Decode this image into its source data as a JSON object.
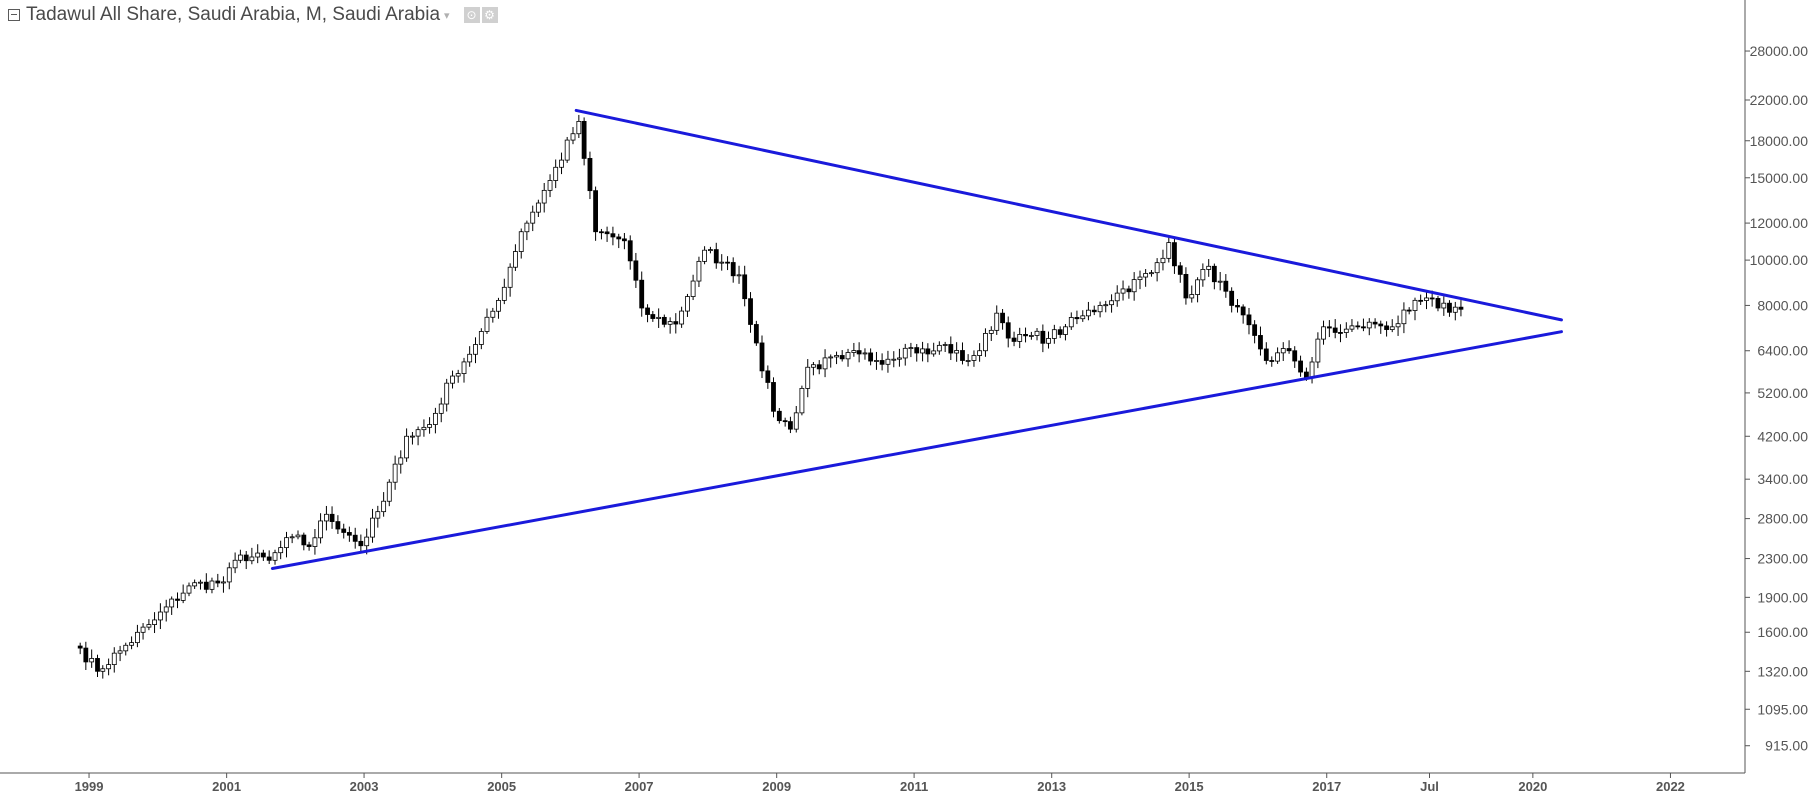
{
  "legend": {
    "title": "Tadawul All Share, Saudi Arabia, M, Saudi Arabia",
    "caret": "▾",
    "tool_1": "⊙",
    "tool_2": "⚙"
  },
  "colors": {
    "trendline": "#1a1adb",
    "candle_up_fill": "#ffffff",
    "candle_down_fill": "#000000",
    "candle_outline": "#000000",
    "axis": "#555555",
    "tick_text": "#555555"
  },
  "chart_data": {
    "type": "candlestick",
    "timeframe": "M",
    "y_scale": "log",
    "grid": false,
    "ylim": [
      800,
      36000
    ],
    "xlim": [
      "1997-09-15",
      "2023-02-01"
    ],
    "yticks": [
      {
        "value": 28000,
        "label": "28000.00"
      },
      {
        "value": 22000,
        "label": "22000.00"
      },
      {
        "value": 18000,
        "label": "18000.00"
      },
      {
        "value": 15000,
        "label": "15000.00"
      },
      {
        "value": 12000,
        "label": "12000.00"
      },
      {
        "value": 10000,
        "label": "10000.00"
      },
      {
        "value": 8000,
        "label": "8000.00"
      },
      {
        "value": 6400,
        "label": "6400.00"
      },
      {
        "value": 5200,
        "label": "5200.00"
      },
      {
        "value": 4200,
        "label": "4200.00"
      },
      {
        "value": 3400,
        "label": "3400.00"
      },
      {
        "value": 2800,
        "label": "2800.00"
      },
      {
        "value": 2300,
        "label": "2300.00"
      },
      {
        "value": 1900,
        "label": "1900.00"
      },
      {
        "value": 1600,
        "label": "1600.00"
      },
      {
        "value": 1320,
        "label": "1320.00"
      },
      {
        "value": 1095,
        "label": "1095.00"
      },
      {
        "value": 915,
        "label": "915.00"
      }
    ],
    "xticks": [
      {
        "date": "1999-01-01",
        "label": "1999"
      },
      {
        "date": "2001-01-01",
        "label": "2001"
      },
      {
        "date": "2003-01-01",
        "label": "2003"
      },
      {
        "date": "2005-01-01",
        "label": "2005"
      },
      {
        "date": "2007-01-01",
        "label": "2007"
      },
      {
        "date": "2009-01-01",
        "label": "2009"
      },
      {
        "date": "2011-01-01",
        "label": "2011"
      },
      {
        "date": "2013-01-01",
        "label": "2013"
      },
      {
        "date": "2015-01-01",
        "label": "2015"
      },
      {
        "date": "2017-01-01",
        "label": "2017"
      },
      {
        "date": "2018-07-01",
        "label": "Jul"
      },
      {
        "date": "2020-01-01",
        "label": "2020"
      },
      {
        "date": "2022-01-01",
        "label": "2022"
      }
    ],
    "trendlines": [
      {
        "name": "upper",
        "points": [
          [
            "2006-02-01",
            20900
          ],
          [
            "2020-06-01",
            7450
          ]
        ]
      },
      {
        "name": "lower",
        "points": [
          [
            "2001-09-01",
            2190
          ],
          [
            "2020-06-01",
            7030
          ]
        ]
      }
    ],
    "series": [
      {
        "type": "candlestick",
        "anchors": [
          [
            "1998-11",
            1480
          ],
          [
            "1999-02",
            1320
          ],
          [
            "1999-06",
            1460
          ],
          [
            "1999-12",
            1700
          ],
          [
            "2000-06",
            2010
          ],
          [
            "2000-12",
            2050
          ],
          [
            "2001-03",
            2340
          ],
          [
            "2001-08",
            2280
          ],
          [
            "2001-12",
            2560
          ],
          [
            "2002-03",
            2440
          ],
          [
            "2002-06",
            2860
          ],
          [
            "2002-10",
            2580
          ],
          [
            "2002-12",
            2450
          ],
          [
            "2003-04",
            3050
          ],
          [
            "2003-08",
            4200
          ],
          [
            "2003-12",
            4450
          ],
          [
            "2004-04",
            5650
          ],
          [
            "2004-08",
            6600
          ],
          [
            "2004-12",
            8200
          ],
          [
            "2005-04",
            11500
          ],
          [
            "2005-09",
            14800
          ],
          [
            "2006-02",
            19800
          ],
          [
            "2006-03",
            16500
          ],
          [
            "2006-05",
            11500
          ],
          [
            "2006-10",
            11000
          ],
          [
            "2007-01",
            7900
          ],
          [
            "2007-03",
            7500
          ],
          [
            "2007-07",
            7300
          ],
          [
            "2007-12",
            10500
          ],
          [
            "2008-03",
            9900
          ],
          [
            "2008-06",
            9300
          ],
          [
            "2008-09",
            6650
          ],
          [
            "2008-12",
            4750
          ],
          [
            "2009-03",
            4350
          ],
          [
            "2009-06",
            5900
          ],
          [
            "2009-12",
            6150
          ],
          [
            "2010-03",
            6300
          ],
          [
            "2010-06",
            6100
          ],
          [
            "2010-12",
            6500
          ],
          [
            "2011-03",
            6300
          ],
          [
            "2011-06",
            6600
          ],
          [
            "2011-09",
            6100
          ],
          [
            "2011-12",
            6400
          ],
          [
            "2012-03",
            7700
          ],
          [
            "2012-06",
            6700
          ],
          [
            "2012-09",
            6900
          ],
          [
            "2012-12",
            6800
          ],
          [
            "2013-03",
            7200
          ],
          [
            "2013-06",
            7600
          ],
          [
            "2013-09",
            8000
          ],
          [
            "2013-12",
            8500
          ],
          [
            "2014-06",
            9400
          ],
          [
            "2014-09",
            10900
          ],
          [
            "2014-12",
            8300
          ],
          [
            "2015-04",
            9700
          ],
          [
            "2015-08",
            8000
          ],
          [
            "2015-12",
            6900
          ],
          [
            "2016-02",
            6100
          ],
          [
            "2016-06",
            6400
          ],
          [
            "2016-09",
            5600
          ],
          [
            "2016-12",
            7200
          ],
          [
            "2017-03",
            7000
          ],
          [
            "2017-06",
            7200
          ],
          [
            "2017-09",
            7300
          ],
          [
            "2017-12",
            7200
          ],
          [
            "2018-03",
            7800
          ],
          [
            "2018-06",
            8300
          ],
          [
            "2018-08",
            7900
          ],
          [
            "2018-12",
            7850
          ]
        ]
      }
    ]
  }
}
